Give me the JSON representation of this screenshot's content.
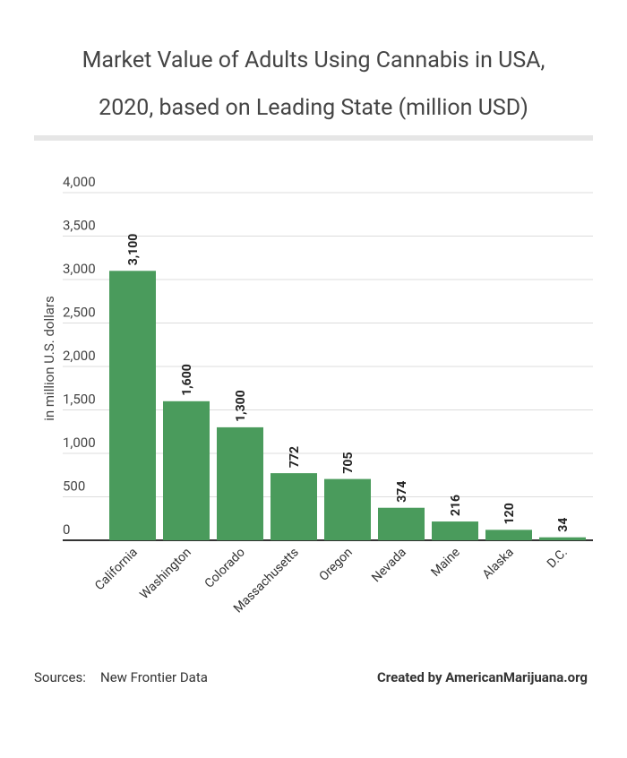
{
  "chart_data": {
    "type": "bar",
    "title": [
      "Market Value of Adults Using Cannabis in USA,",
      "2020, based on Leading State (million USD)"
    ],
    "y_label": "in million U.S. dollars",
    "categories": [
      "California",
      "Washington",
      "Colorado",
      "Massachusetts",
      "Oregon",
      "Nevada",
      "Maine",
      "Alaska",
      "D.C."
    ],
    "values": [
      3100,
      1600,
      1300,
      772,
      705,
      374,
      216,
      120,
      34
    ],
    "value_labels": [
      "3,100",
      "1,600",
      "1,300",
      "772",
      "705",
      "374",
      "216",
      "120",
      "34"
    ],
    "color": "#4a9b5c",
    "ylim": [
      0,
      4000
    ],
    "yticks": [
      0,
      500,
      {
        "value": 1000,
        "label": "1,000"
      },
      {
        "value": 1500,
        "label": "1,500"
      },
      {
        "value": 2000,
        "label": "2,000"
      },
      {
        "value": 2500,
        "label": "2,500"
      },
      {
        "value": 3000,
        "label": "3,000"
      },
      {
        "value": 3500,
        "label": "3,500"
      },
      {
        "value": 4000,
        "label": "4,000"
      }
    ],
    "grid": true,
    "source_label": "Sources:",
    "source": "New Frontier Data",
    "credit": "Created by AmericanMarijuana.org"
  }
}
